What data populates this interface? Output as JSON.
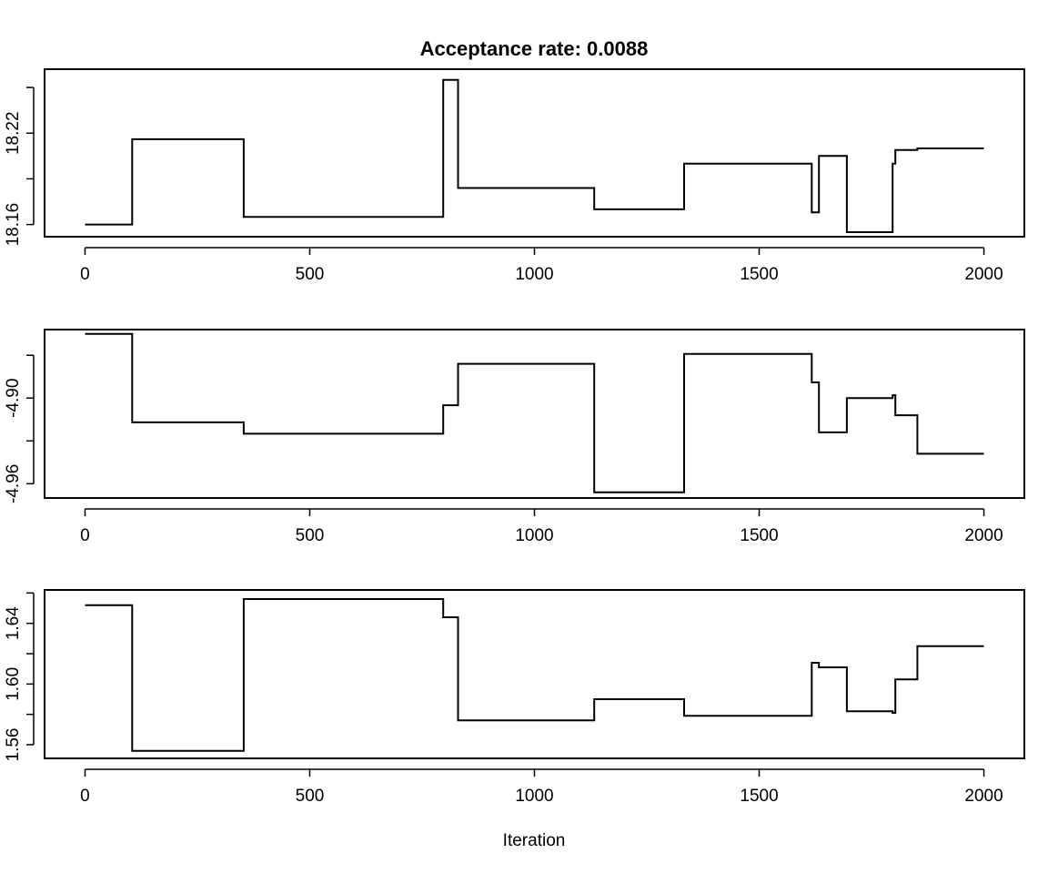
{
  "chart_data": [
    {
      "type": "line",
      "title": "Acceptance rate: 0.0088",
      "xlabel": "",
      "ylabel": "",
      "xlim": [
        -90,
        2090
      ],
      "ylim": [
        18.152,
        18.262
      ],
      "xticks": [
        0,
        500,
        1000,
        1500,
        2000
      ],
      "xtick_labels": [
        "0",
        "500",
        "1000",
        "1500",
        "2000"
      ],
      "yticks": [
        18.16,
        18.22
      ],
      "ytick_labels": [
        "18.16",
        "18.22"
      ],
      "ymarks": [
        18.16,
        18.19,
        18.22,
        18.25
      ],
      "grid": false,
      "step": true,
      "x": [
        0,
        105,
        353,
        797,
        830,
        1133,
        1333,
        1617,
        1633,
        1695,
        1797,
        1803,
        1852,
        2000
      ],
      "y": [
        18.16,
        18.216,
        18.165,
        18.255,
        18.184,
        18.17,
        18.2,
        18.168,
        18.205,
        18.155,
        18.2,
        18.209,
        18.21,
        18.21
      ]
    },
    {
      "type": "line",
      "title": "",
      "xlabel": "",
      "ylabel": "",
      "xlim": [
        -90,
        2090
      ],
      "ylim": [
        -4.97,
        -4.852
      ],
      "xticks": [
        0,
        500,
        1000,
        1500,
        2000
      ],
      "xtick_labels": [
        "0",
        "500",
        "1000",
        "1500",
        "2000"
      ],
      "yticks": [
        -4.96,
        -4.9
      ],
      "ytick_labels": [
        "-4.96",
        "-4.90"
      ],
      "ymarks": [
        -4.96,
        -4.93,
        -4.9,
        -4.87
      ],
      "grid": false,
      "step": true,
      "x": [
        0,
        105,
        353,
        797,
        830,
        1133,
        1333,
        1617,
        1633,
        1695,
        1797,
        1803,
        1852,
        2000
      ],
      "y": [
        -4.855,
        -4.917,
        -4.925,
        -4.905,
        -4.876,
        -4.966,
        -4.869,
        -4.889,
        -4.924,
        -4.9,
        -4.898,
        -4.912,
        -4.939,
        -4.939
      ]
    },
    {
      "type": "line",
      "title": "",
      "xlabel": "Iteration",
      "ylabel": "",
      "xlim": [
        -90,
        2090
      ],
      "ylim": [
        1.551,
        1.662
      ],
      "xticks": [
        0,
        500,
        1000,
        1500,
        2000
      ],
      "xtick_labels": [
        "0",
        "500",
        "1000",
        "1500",
        "2000"
      ],
      "yticks": [
        1.56,
        1.6,
        1.64
      ],
      "ytick_labels": [
        "1.56",
        "1.60",
        "1.64"
      ],
      "ymarks": [
        1.56,
        1.58,
        1.6,
        1.62,
        1.64,
        1.66
      ],
      "grid": false,
      "step": true,
      "x": [
        0,
        105,
        353,
        797,
        830,
        1133,
        1333,
        1617,
        1633,
        1695,
        1797,
        1803,
        1852,
        2000
      ],
      "y": [
        1.652,
        1.556,
        1.656,
        1.644,
        1.576,
        1.59,
        1.579,
        1.614,
        1.611,
        1.582,
        1.581,
        1.603,
        1.625,
        1.625
      ]
    }
  ]
}
